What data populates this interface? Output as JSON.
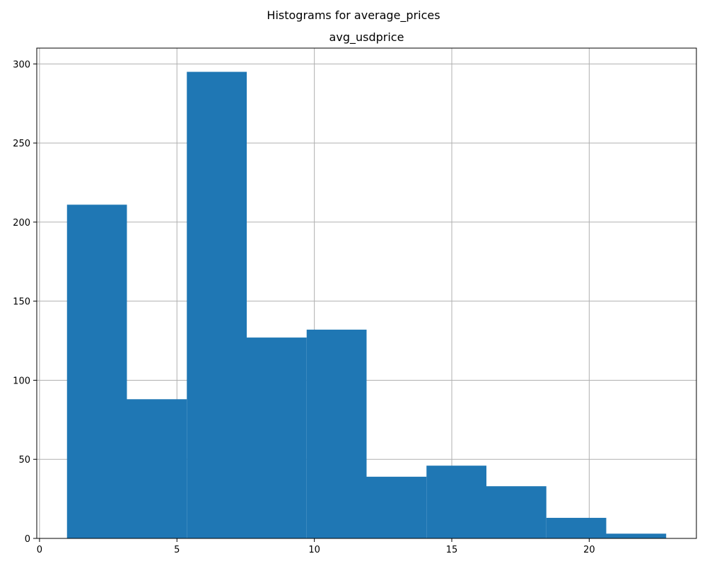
{
  "figure": {
    "suptitle": "Histograms for average_prices"
  },
  "chart_data": {
    "type": "bar",
    "subtype": "histogram",
    "title": "avg_usdprice",
    "xlabel": "",
    "ylabel": "",
    "bins": [
      {
        "start": 1.0,
        "end": 3.18,
        "count": 211
      },
      {
        "start": 3.18,
        "end": 5.36,
        "count": 88
      },
      {
        "start": 5.36,
        "end": 7.54,
        "count": 295
      },
      {
        "start": 7.54,
        "end": 9.72,
        "count": 127
      },
      {
        "start": 9.72,
        "end": 11.9,
        "count": 132
      },
      {
        "start": 11.9,
        "end": 14.08,
        "count": 39
      },
      {
        "start": 14.08,
        "end": 16.26,
        "count": 46
      },
      {
        "start": 16.26,
        "end": 18.44,
        "count": 33
      },
      {
        "start": 18.44,
        "end": 20.62,
        "count": 13
      },
      {
        "start": 20.62,
        "end": 22.8,
        "count": 3
      }
    ],
    "xlim": [
      -0.1,
      23.9
    ],
    "ylim": [
      0,
      310
    ],
    "xticks": [
      0,
      5,
      10,
      15,
      20
    ],
    "yticks": [
      0,
      50,
      100,
      150,
      200,
      250,
      300
    ],
    "grid": true,
    "bar_color": "#1f77b4",
    "grid_color": "#b0b0b0"
  }
}
